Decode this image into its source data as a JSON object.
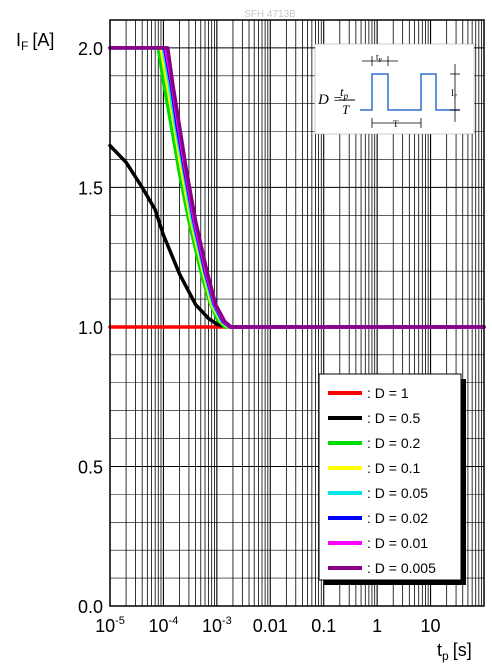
{
  "watermark": "SFH 4713B",
  "chart_data": {
    "type": "line",
    "title": "",
    "ylabel": {
      "main": "I",
      "sub": "F",
      "unit": "[A]"
    },
    "xlabel": {
      "main": "t",
      "sub": "p",
      "unit": "[s]"
    },
    "x_scale": "log",
    "xlim": [
      1e-05,
      100
    ],
    "ylim": [
      0,
      2.1
    ],
    "grid": true,
    "legend_position": "bottom-right",
    "x_ticks": [
      {
        "x": 1e-05,
        "label": "10",
        "sup": "-5"
      },
      {
        "x": 0.0001,
        "label": "10",
        "sup": "-4"
      },
      {
        "x": 0.001,
        "label": "10",
        "sup": "-3"
      },
      {
        "x": 0.01,
        "label": "0.01",
        "sup": ""
      },
      {
        "x": 0.1,
        "label": "0.1",
        "sup": ""
      },
      {
        "x": 1,
        "label": "1",
        "sup": ""
      },
      {
        "x": 10,
        "label": "10",
        "sup": ""
      }
    ],
    "y_ticks": [
      {
        "y": 0,
        "label": "0.0"
      },
      {
        "y": 0.5,
        "label": "0.5"
      },
      {
        "y": 1.0,
        "label": "1.0"
      },
      {
        "y": 1.5,
        "label": "1.5"
      },
      {
        "y": 2.0,
        "label": "2.0"
      }
    ],
    "series": [
      {
        "name": ": D = 1",
        "color": "#ff0000",
        "points": [
          [
            1e-05,
            1.0
          ],
          [
            100,
            1.0
          ]
        ]
      },
      {
        "name": ": D = 0.5",
        "color": "#000000",
        "points": [
          [
            1e-05,
            1.65
          ],
          [
            2e-05,
            1.59
          ],
          [
            4e-05,
            1.5
          ],
          [
            7e-05,
            1.42
          ],
          [
            0.0001,
            1.33
          ],
          [
            0.0002,
            1.19
          ],
          [
            0.0004,
            1.08
          ],
          [
            0.0007,
            1.03
          ],
          [
            0.001,
            1.01
          ],
          [
            0.0015,
            1.0
          ],
          [
            100,
            1.0
          ]
        ]
      },
      {
        "name": ": D = 0.2",
        "color": "#00dd00",
        "points": [
          [
            1e-05,
            2.0
          ],
          [
            8e-05,
            2.0
          ],
          [
            0.0001,
            1.88
          ],
          [
            0.00015,
            1.69
          ],
          [
            0.0002,
            1.55
          ],
          [
            0.0003,
            1.38
          ],
          [
            0.0005,
            1.2
          ],
          [
            0.0007,
            1.1
          ],
          [
            0.001,
            1.03
          ],
          [
            0.0014,
            1.0
          ],
          [
            100,
            1.0
          ]
        ]
      },
      {
        "name": ": D = 0.1",
        "color": "#ffff00",
        "points": [
          [
            1e-05,
            2.0
          ],
          [
            9e-05,
            2.0
          ],
          [
            0.00012,
            1.86
          ],
          [
            0.00016,
            1.72
          ],
          [
            0.00022,
            1.56
          ],
          [
            0.00033,
            1.38
          ],
          [
            0.00055,
            1.2
          ],
          [
            0.0008,
            1.08
          ],
          [
            0.0012,
            1.02
          ],
          [
            0.0016,
            1.0
          ],
          [
            100,
            1.0
          ]
        ]
      },
      {
        "name": ": D = 0.05",
        "color": "#00e5e5",
        "points": [
          [
            1e-05,
            2.0
          ],
          [
            0.0001,
            2.0
          ],
          [
            0.00013,
            1.87
          ],
          [
            0.00017,
            1.72
          ],
          [
            0.00024,
            1.56
          ],
          [
            0.00035,
            1.38
          ],
          [
            0.00058,
            1.2
          ],
          [
            0.00085,
            1.08
          ],
          [
            0.00125,
            1.02
          ],
          [
            0.0017,
            1.0
          ],
          [
            100,
            1.0
          ]
        ]
      },
      {
        "name": ": D = 0.02",
        "color": "#0000ff",
        "points": [
          [
            1e-05,
            2.0
          ],
          [
            0.000105,
            2.0
          ],
          [
            0.00014,
            1.87
          ],
          [
            0.00018,
            1.72
          ],
          [
            0.00025,
            1.56
          ],
          [
            0.00037,
            1.38
          ],
          [
            0.0006,
            1.2
          ],
          [
            0.0009,
            1.08
          ],
          [
            0.0013,
            1.02
          ],
          [
            0.00175,
            1.0
          ],
          [
            100,
            1.0
          ]
        ]
      },
      {
        "name": ": D = 0.01",
        "color": "#ff00ff",
        "points": [
          [
            1e-05,
            2.0
          ],
          [
            0.00011,
            2.0
          ],
          [
            0.000145,
            1.87
          ],
          [
            0.00019,
            1.72
          ],
          [
            0.00026,
            1.56
          ],
          [
            0.00038,
            1.38
          ],
          [
            0.00062,
            1.2
          ],
          [
            0.00092,
            1.08
          ],
          [
            0.00135,
            1.02
          ],
          [
            0.0018,
            1.0
          ],
          [
            100,
            1.0
          ]
        ]
      },
      {
        "name": ": D = 0.005",
        "color": "#880088",
        "points": [
          [
            1e-05,
            2.0
          ],
          [
            0.00012,
            2.0
          ],
          [
            0.00015,
            1.87
          ],
          [
            0.0002,
            1.72
          ],
          [
            0.00027,
            1.56
          ],
          [
            0.0004,
            1.38
          ],
          [
            0.00065,
            1.2
          ],
          [
            0.00095,
            1.08
          ],
          [
            0.0014,
            1.02
          ],
          [
            0.00185,
            1.0
          ],
          [
            100,
            1.0
          ]
        ]
      }
    ]
  },
  "inset": {
    "formula_lhs": "D =",
    "numerator": "t",
    "numerator_sub": "p",
    "denominator": "T",
    "tp_label": "t",
    "tp_sub": "P",
    "period_label": "T",
    "current_label": "I",
    "current_sub": "F"
  }
}
